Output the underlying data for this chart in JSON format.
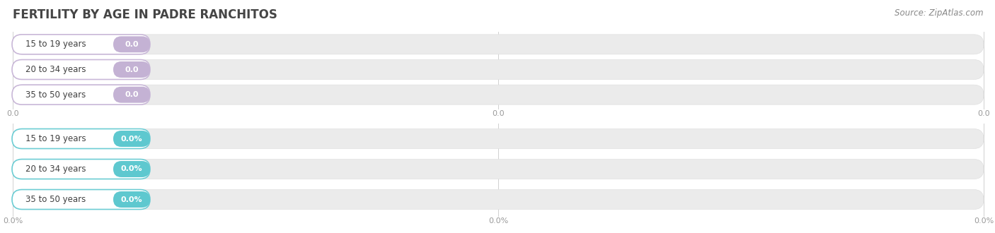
{
  "title": "FERTILITY BY AGE IN PADRE RANCHITOS",
  "source_text": "Source: ZipAtlas.com",
  "categories": [
    "15 to 19 years",
    "20 to 34 years",
    "35 to 50 years"
  ],
  "values_count": [
    0.0,
    0.0,
    0.0
  ],
  "values_pct": [
    0.0,
    0.0,
    0.0
  ],
  "bar_color_count": "#c9b8d8",
  "bar_color_pct": "#6dcdd4",
  "label_bg_count": "#c4b2d4",
  "label_bg_pct": "#5ec8cf",
  "bar_track_color": "#ebebeb",
  "bar_track_edge": "#e0e0e0",
  "title_color": "#454545",
  "source_color": "#888888",
  "tick_color": "#999999",
  "background_color": "#ffffff",
  "axis_label_count": [
    "0.0",
    "0.0",
    "0.0"
  ],
  "axis_label_pct": [
    "0.0%",
    "0.0%",
    "0.0%"
  ]
}
